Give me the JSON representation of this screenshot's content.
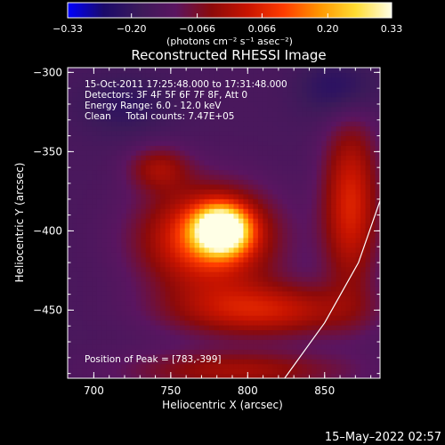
{
  "chart_data": {
    "type": "heatmap",
    "title": "Reconstructed RHESSI Image",
    "xlabel": "Heliocentric X (arcsec)",
    "ylabel": "Heliocentric Y (arcsec)",
    "xlim": [
      683,
      886
    ],
    "ylim": [
      -493,
      -297
    ],
    "x_ticks": [
      700,
      750,
      800,
      850
    ],
    "y_ticks": [
      -300,
      -350,
      -400,
      -450
    ],
    "colorbar": {
      "range": [
        -0.33,
        0.33
      ],
      "ticks": [
        -0.33,
        -0.2,
        -0.066,
        0.066,
        0.2,
        0.33
      ],
      "tick_labels": [
        "−0.33",
        "−0.20",
        "−0.066",
        "0.066",
        "0.20",
        "0.33"
      ],
      "units_line": "(photons cm⁻² s⁻¹ asec⁻²)",
      "colormap": [
        "#0000ff",
        "#1a0a6a",
        "#3c1a5a",
        "#5a1560",
        "#8c0a0a",
        "#c81400",
        "#ff3c00",
        "#ff9600",
        "#ffdc32",
        "#ffffe6"
      ]
    },
    "annotations": [
      "15-Oct-2011 17:25:48.000 to 17:31:48.000",
      "Detectors: 3F 4F 5F 6F 7F 8F, Att 0",
      "Energy Range: 6.0 - 12.0 keV",
      "Clean     Total counts: 7.47E+05"
    ],
    "peak_label": "Position of Peak = [783,-399]",
    "peak": {
      "x": 783,
      "y": -399
    },
    "limb_curve": [
      [
        824,
        -493
      ],
      [
        850,
        -458
      ],
      [
        872,
        -420
      ],
      [
        886,
        -381
      ]
    ],
    "sources": [
      {
        "x": 783,
        "y": -399,
        "sx": 12,
        "sy": 10,
        "amp": 1.0
      },
      {
        "x": 774,
        "y": -405,
        "sx": 30,
        "sy": 23,
        "amp": 0.55
      },
      {
        "x": 810,
        "y": -450,
        "sx": 42,
        "sy": 12,
        "amp": 0.38
      },
      {
        "x": 867,
        "y": -383,
        "sx": 13,
        "sy": 38,
        "amp": 0.42
      },
      {
        "x": 742,
        "y": -360,
        "sx": 14,
        "sy": 10,
        "amp": 0.25
      },
      {
        "x": 793,
        "y": -488,
        "sx": 50,
        "sy": 9,
        "amp": 0.28
      },
      {
        "x": 860,
        "y": -310,
        "sx": 18,
        "sy": 14,
        "amp": -0.18
      },
      {
        "x": 720,
        "y": -320,
        "sx": 22,
        "sy": 14,
        "amp": -0.12
      }
    ]
  },
  "footer": {
    "date": "15–May–2022 02:57"
  }
}
